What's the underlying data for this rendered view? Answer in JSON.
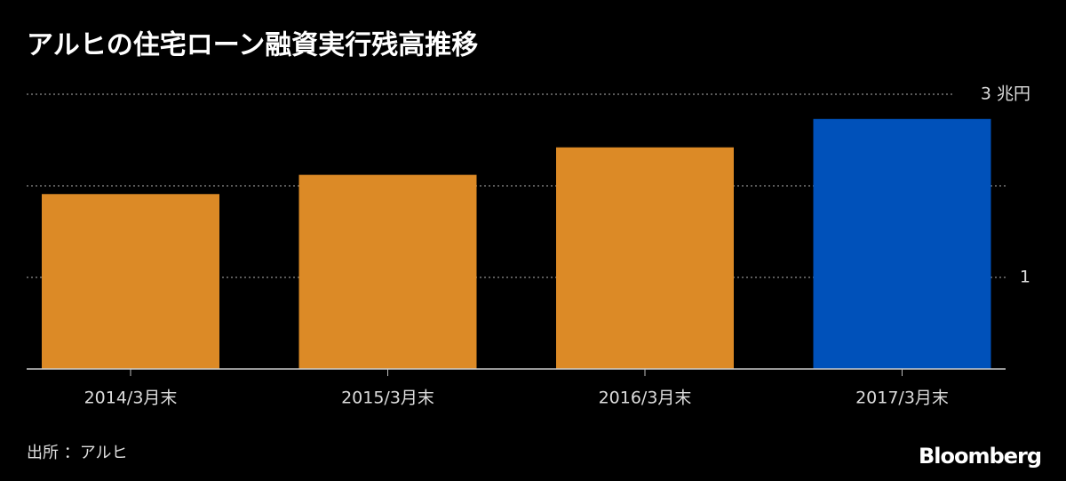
{
  "chart_data": {
    "type": "bar",
    "title": "アルヒの住宅ローン融資実行残高推移",
    "categories": [
      "2014/3月末",
      "2015/3月末",
      "2016/3月末",
      "2017/3月末"
    ],
    "values": [
      1.91,
      2.12,
      2.42,
      2.73
    ],
    "colors": [
      "#dc8a26",
      "#dc8a26",
      "#dc8a26",
      "#0051ba"
    ],
    "ylim": [
      0,
      3
    ],
    "yticks": [
      1,
      {
        "value": 3,
        "label": "3 兆円"
      }
    ],
    "grid_lines": [
      1,
      2,
      3
    ],
    "grid": true,
    "source": "出所 ：アルヒ",
    "brand": "Bloomberg"
  }
}
